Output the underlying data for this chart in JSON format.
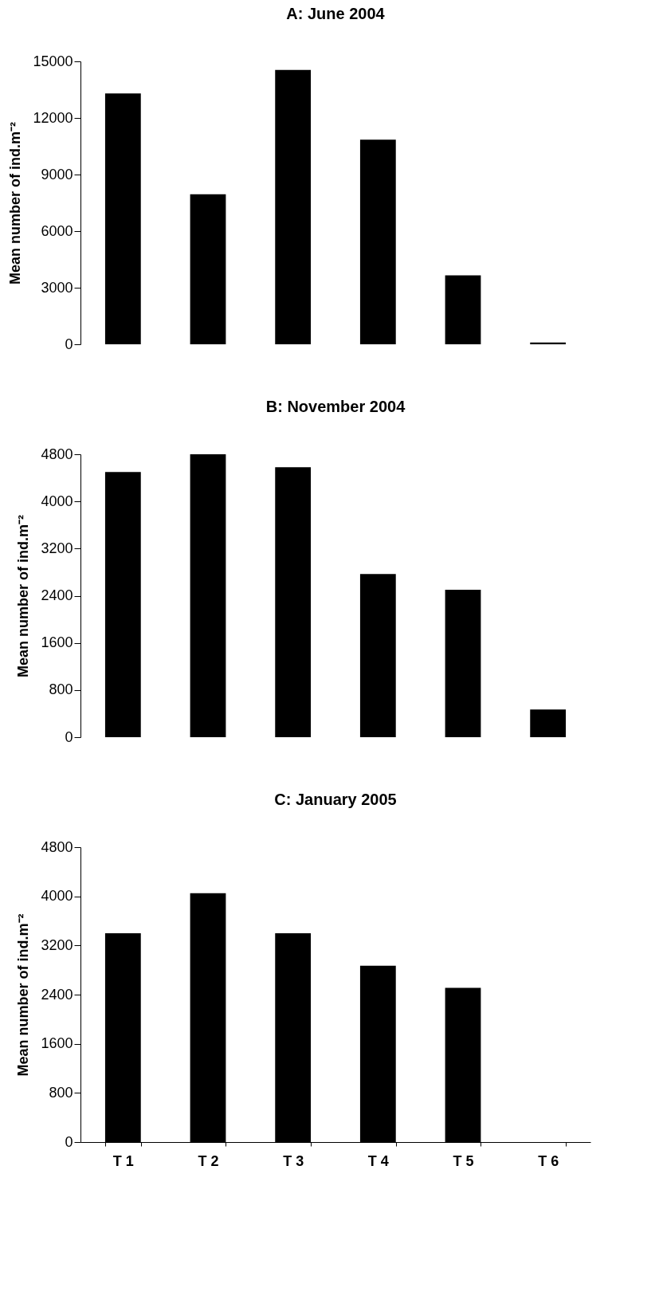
{
  "chart_data": [
    {
      "type": "bar",
      "title": "A: June 2004",
      "ylabel": "Mean number of ind.m⁻²",
      "categories": [
        null,
        null,
        null,
        null,
        null,
        null
      ],
      "values": [
        13300,
        7950,
        14550,
        10850,
        3650,
        100
      ],
      "color": "#000000",
      "ylim": [
        0,
        15000
      ],
      "yticks": [
        0,
        3000,
        6000,
        9000,
        12000,
        15000
      ],
      "grid": false,
      "tick_labels": "y"
    },
    {
      "type": "bar",
      "title": "B: November 2004",
      "ylabel": "Mean number of ind.m⁻²",
      "categories": [
        null,
        null,
        null,
        null,
        null,
        null
      ],
      "values": [
        4500,
        4800,
        4580,
        2770,
        2500,
        470
      ],
      "color": "#000000",
      "ylim": [
        0,
        4800
      ],
      "yticks": [
        0,
        800,
        1600,
        2400,
        3200,
        4000,
        4800
      ],
      "grid": false,
      "tick_labels": "y"
    },
    {
      "type": "bar",
      "title": "C: January 2005",
      "ylabel": "Mean number of ind.m⁻²",
      "categories": [
        "T 1",
        "T 2",
        "T 3",
        "T 4",
        "T 5",
        "T 6"
      ],
      "values": [
        3400,
        4050,
        3400,
        2870,
        2510,
        0
      ],
      "color": "#000000",
      "ylim": [
        0,
        4800
      ],
      "yticks": [
        0,
        800,
        1600,
        2400,
        3200,
        4000,
        4800
      ],
      "grid": false
    }
  ]
}
